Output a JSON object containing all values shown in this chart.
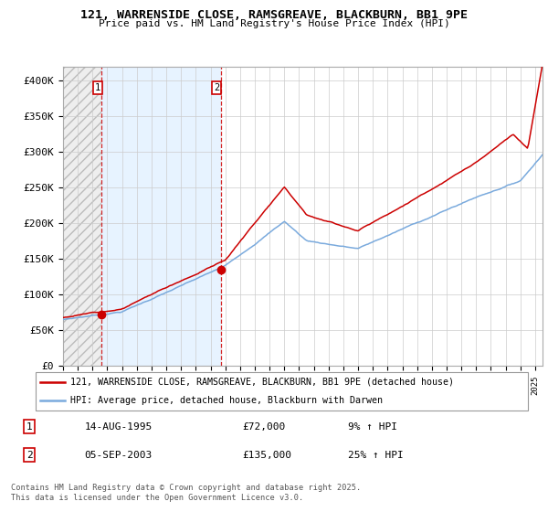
{
  "title": "121, WARRENSIDE CLOSE, RAMSGREAVE, BLACKBURN, BB1 9PE",
  "subtitle": "Price paid vs. HM Land Registry's House Price Index (HPI)",
  "ylim": [
    0,
    420000
  ],
  "xlim_start": 1993,
  "xlim_end": 2025.5,
  "house_color": "#cc0000",
  "hpi_color": "#7aaadd",
  "marker1_x": 1995.62,
  "marker1_y": 72000,
  "marker2_x": 2003.68,
  "marker2_y": 135000,
  "vline1_x": 1995.62,
  "vline2_x": 2003.68,
  "legend_line1": "121, WARRENSIDE CLOSE, RAMSGREAVE, BLACKBURN, BB1 9PE (detached house)",
  "legend_line2": "HPI: Average price, detached house, Blackburn with Darwen",
  "sale1_date": "14-AUG-1995",
  "sale1_price": "£72,000",
  "sale1_hpi": "9% ↑ HPI",
  "sale2_date": "05-SEP-2003",
  "sale2_price": "£135,000",
  "sale2_hpi": "25% ↑ HPI",
  "footer": "Contains HM Land Registry data © Crown copyright and database right 2025.\nThis data is licensed under the Open Government Licence v3.0."
}
